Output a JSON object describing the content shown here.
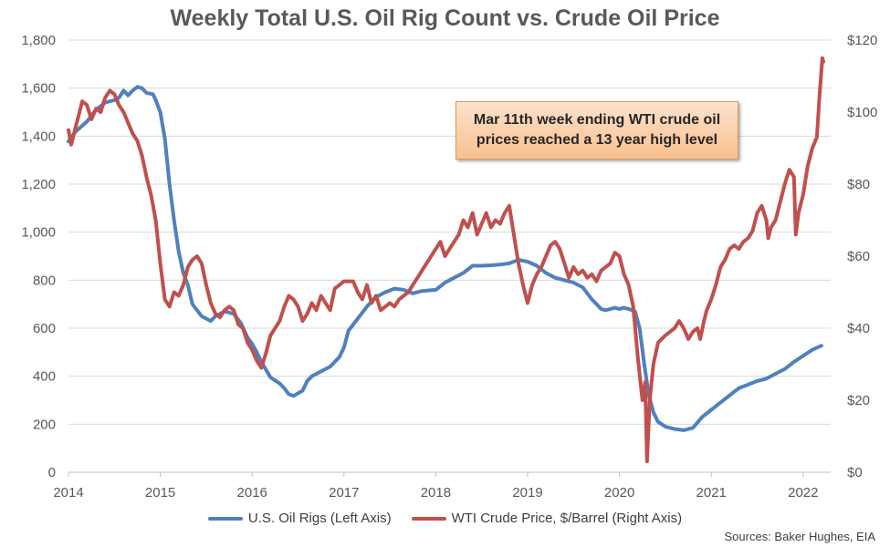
{
  "chart_data": {
    "type": "line",
    "title": "Weekly Total U.S. Oil Rig Count vs. Crude Oil Price",
    "annotation": "Mar 11th week ending WTI crude oil prices reached a 13 year high level",
    "source": "Sources: Baker Hughes, EIA",
    "x_tick_labels": [
      "2014",
      "2015",
      "2016",
      "2017",
      "2018",
      "2019",
      "2020",
      "2021",
      "2022"
    ],
    "xlim": [
      2014.0,
      2022.3
    ],
    "left_axis": {
      "ylim": [
        0,
        1800
      ],
      "tick_labels": [
        "0",
        "200",
        "400",
        "600",
        "800",
        "1,000",
        "1,200",
        "1,400",
        "1,600",
        "1,800"
      ]
    },
    "right_axis": {
      "ylim": [
        0,
        120
      ],
      "tick_labels": [
        "$0",
        "$20",
        "$40",
        "$60",
        "$80",
        "$100",
        "$120"
      ]
    },
    "grid": "horizontal",
    "legend_position": "bottom",
    "colors": {
      "rigs": "#4f81bd",
      "wti": "#c0504d"
    },
    "series": [
      {
        "name": "U.S. Oil Rigs (Left Axis)",
        "axis": "left",
        "points": [
          [
            2014.0,
            1378
          ],
          [
            2014.08,
            1420
          ],
          [
            2014.2,
            1460
          ],
          [
            2014.3,
            1510
          ],
          [
            2014.4,
            1540
          ],
          [
            2014.5,
            1550
          ],
          [
            2014.55,
            1560
          ],
          [
            2014.6,
            1590
          ],
          [
            2014.65,
            1570
          ],
          [
            2014.7,
            1590
          ],
          [
            2014.75,
            1605
          ],
          [
            2014.8,
            1600
          ],
          [
            2014.85,
            1580
          ],
          [
            2014.92,
            1575
          ],
          [
            2014.95,
            1550
          ],
          [
            2015.0,
            1500
          ],
          [
            2015.05,
            1390
          ],
          [
            2015.1,
            1200
          ],
          [
            2015.15,
            1050
          ],
          [
            2015.2,
            920
          ],
          [
            2015.25,
            830
          ],
          [
            2015.3,
            780
          ],
          [
            2015.35,
            700
          ],
          [
            2015.45,
            650
          ],
          [
            2015.55,
            630
          ],
          [
            2015.6,
            650
          ],
          [
            2015.7,
            670
          ],
          [
            2015.8,
            660
          ],
          [
            2015.88,
            620
          ],
          [
            2015.95,
            560
          ],
          [
            2016.0,
            535
          ],
          [
            2016.05,
            500
          ],
          [
            2016.1,
            460
          ],
          [
            2016.2,
            395
          ],
          [
            2016.3,
            370
          ],
          [
            2016.35,
            350
          ],
          [
            2016.4,
            325
          ],
          [
            2016.45,
            318
          ],
          [
            2016.55,
            340
          ],
          [
            2016.6,
            380
          ],
          [
            2016.65,
            400
          ],
          [
            2016.75,
            420
          ],
          [
            2016.85,
            440
          ],
          [
            2016.95,
            480
          ],
          [
            2017.0,
            520
          ],
          [
            2017.05,
            590
          ],
          [
            2017.15,
            640
          ],
          [
            2017.25,
            690
          ],
          [
            2017.35,
            730
          ],
          [
            2017.45,
            750
          ],
          [
            2017.55,
            765
          ],
          [
            2017.65,
            760
          ],
          [
            2017.75,
            745
          ],
          [
            2017.85,
            755
          ],
          [
            2018.0,
            760
          ],
          [
            2018.1,
            790
          ],
          [
            2018.2,
            810
          ],
          [
            2018.3,
            830
          ],
          [
            2018.4,
            860
          ],
          [
            2018.5,
            860
          ],
          [
            2018.6,
            862
          ],
          [
            2018.7,
            865
          ],
          [
            2018.8,
            870
          ],
          [
            2018.9,
            885
          ],
          [
            2019.0,
            877
          ],
          [
            2019.1,
            860
          ],
          [
            2019.2,
            830
          ],
          [
            2019.3,
            810
          ],
          [
            2019.4,
            800
          ],
          [
            2019.5,
            790
          ],
          [
            2019.6,
            770
          ],
          [
            2019.7,
            720
          ],
          [
            2019.8,
            680
          ],
          [
            2019.85,
            675
          ],
          [
            2019.95,
            685
          ],
          [
            2020.0,
            680
          ],
          [
            2020.05,
            685
          ],
          [
            2020.1,
            680
          ],
          [
            2020.17,
            670
          ],
          [
            2020.22,
            600
          ],
          [
            2020.27,
            450
          ],
          [
            2020.32,
            320
          ],
          [
            2020.37,
            250
          ],
          [
            2020.42,
            210
          ],
          [
            2020.5,
            190
          ],
          [
            2020.6,
            180
          ],
          [
            2020.7,
            175
          ],
          [
            2020.8,
            185
          ],
          [
            2020.9,
            230
          ],
          [
            2021.0,
            260
          ],
          [
            2021.1,
            290
          ],
          [
            2021.2,
            320
          ],
          [
            2021.3,
            350
          ],
          [
            2021.4,
            365
          ],
          [
            2021.5,
            380
          ],
          [
            2021.6,
            390
          ],
          [
            2021.7,
            410
          ],
          [
            2021.8,
            430
          ],
          [
            2021.9,
            460
          ],
          [
            2022.0,
            485
          ],
          [
            2022.1,
            510
          ],
          [
            2022.2,
            527
          ]
        ]
      },
      {
        "name": "WTI Crude Price, $/Barrel (Right Axis)",
        "axis": "right",
        "points": [
          [
            2014.0,
            95
          ],
          [
            2014.03,
            91
          ],
          [
            2014.08,
            96
          ],
          [
            2014.12,
            100
          ],
          [
            2014.15,
            103
          ],
          [
            2014.2,
            102
          ],
          [
            2014.25,
            98
          ],
          [
            2014.3,
            101
          ],
          [
            2014.35,
            100
          ],
          [
            2014.4,
            104
          ],
          [
            2014.45,
            106
          ],
          [
            2014.5,
            105
          ],
          [
            2014.55,
            102
          ],
          [
            2014.6,
            100
          ],
          [
            2014.65,
            97
          ],
          [
            2014.7,
            94
          ],
          [
            2014.75,
            92
          ],
          [
            2014.8,
            88
          ],
          [
            2014.85,
            82
          ],
          [
            2014.9,
            77
          ],
          [
            2014.95,
            70
          ],
          [
            2015.0,
            58
          ],
          [
            2015.05,
            48
          ],
          [
            2015.1,
            46
          ],
          [
            2015.15,
            50
          ],
          [
            2015.2,
            49
          ],
          [
            2015.25,
            52
          ],
          [
            2015.3,
            57
          ],
          [
            2015.35,
            59
          ],
          [
            2015.4,
            60
          ],
          [
            2015.45,
            58
          ],
          [
            2015.5,
            52
          ],
          [
            2015.55,
            47
          ],
          [
            2015.6,
            44
          ],
          [
            2015.65,
            43
          ],
          [
            2015.7,
            45
          ],
          [
            2015.75,
            46
          ],
          [
            2015.8,
            45
          ],
          [
            2015.85,
            41
          ],
          [
            2015.9,
            40
          ],
          [
            2015.95,
            36
          ],
          [
            2016.0,
            34
          ],
          [
            2016.05,
            31
          ],
          [
            2016.1,
            29
          ],
          [
            2016.15,
            33
          ],
          [
            2016.2,
            38
          ],
          [
            2016.3,
            42
          ],
          [
            2016.35,
            46
          ],
          [
            2016.4,
            49
          ],
          [
            2016.45,
            48
          ],
          [
            2016.5,
            46
          ],
          [
            2016.55,
            42
          ],
          [
            2016.6,
            44
          ],
          [
            2016.65,
            47
          ],
          [
            2016.7,
            45
          ],
          [
            2016.75,
            49
          ],
          [
            2016.8,
            47
          ],
          [
            2016.85,
            45
          ],
          [
            2016.9,
            51
          ],
          [
            2016.95,
            52
          ],
          [
            2017.0,
            53
          ],
          [
            2017.1,
            53
          ],
          [
            2017.15,
            50
          ],
          [
            2017.2,
            48
          ],
          [
            2017.25,
            52
          ],
          [
            2017.3,
            47
          ],
          [
            2017.35,
            49
          ],
          [
            2017.4,
            45
          ],
          [
            2017.45,
            46
          ],
          [
            2017.5,
            47
          ],
          [
            2017.55,
            46
          ],
          [
            2017.6,
            48
          ],
          [
            2017.7,
            50
          ],
          [
            2017.75,
            52
          ],
          [
            2017.8,
            54
          ],
          [
            2017.85,
            56
          ],
          [
            2017.9,
            58
          ],
          [
            2018.0,
            62
          ],
          [
            2018.05,
            64
          ],
          [
            2018.1,
            60
          ],
          [
            2018.15,
            62
          ],
          [
            2018.2,
            64
          ],
          [
            2018.25,
            66
          ],
          [
            2018.3,
            70
          ],
          [
            2018.35,
            68
          ],
          [
            2018.4,
            72
          ],
          [
            2018.45,
            66
          ],
          [
            2018.5,
            69
          ],
          [
            2018.55,
            72
          ],
          [
            2018.6,
            68
          ],
          [
            2018.65,
            70
          ],
          [
            2018.7,
            69
          ],
          [
            2018.75,
            72
          ],
          [
            2018.8,
            74
          ],
          [
            2018.85,
            66
          ],
          [
            2018.9,
            58
          ],
          [
            2018.95,
            52
          ],
          [
            2019.0,
            47
          ],
          [
            2019.05,
            52
          ],
          [
            2019.1,
            55
          ],
          [
            2019.15,
            57
          ],
          [
            2019.2,
            60
          ],
          [
            2019.25,
            63
          ],
          [
            2019.3,
            64
          ],
          [
            2019.35,
            62
          ],
          [
            2019.4,
            58
          ],
          [
            2019.45,
            54
          ],
          [
            2019.5,
            57
          ],
          [
            2019.55,
            55
          ],
          [
            2019.6,
            56
          ],
          [
            2019.65,
            54
          ],
          [
            2019.7,
            55
          ],
          [
            2019.75,
            53
          ],
          [
            2019.8,
            56
          ],
          [
            2019.85,
            57
          ],
          [
            2019.9,
            58
          ],
          [
            2019.95,
            61
          ],
          [
            2020.0,
            60
          ],
          [
            2020.05,
            55
          ],
          [
            2020.1,
            52
          ],
          [
            2020.15,
            46
          ],
          [
            2020.2,
            32
          ],
          [
            2020.25,
            20
          ],
          [
            2020.28,
            25
          ],
          [
            2020.3,
            3
          ],
          [
            2020.33,
            20
          ],
          [
            2020.37,
            30
          ],
          [
            2020.42,
            36
          ],
          [
            2020.5,
            38
          ],
          [
            2020.6,
            40
          ],
          [
            2020.65,
            42
          ],
          [
            2020.7,
            40
          ],
          [
            2020.75,
            37
          ],
          [
            2020.8,
            39
          ],
          [
            2020.85,
            40
          ],
          [
            2020.88,
            37
          ],
          [
            2020.92,
            42
          ],
          [
            2020.95,
            45
          ],
          [
            2021.0,
            48
          ],
          [
            2021.05,
            52
          ],
          [
            2021.1,
            57
          ],
          [
            2021.15,
            59
          ],
          [
            2021.2,
            62
          ],
          [
            2021.25,
            63
          ],
          [
            2021.3,
            62
          ],
          [
            2021.35,
            64
          ],
          [
            2021.4,
            65
          ],
          [
            2021.45,
            67
          ],
          [
            2021.5,
            72
          ],
          [
            2021.55,
            74
          ],
          [
            2021.6,
            70
          ],
          [
            2021.62,
            65
          ],
          [
            2021.65,
            68
          ],
          [
            2021.7,
            70
          ],
          [
            2021.75,
            75
          ],
          [
            2021.8,
            80
          ],
          [
            2021.85,
            84
          ],
          [
            2021.9,
            82
          ],
          [
            2021.92,
            66
          ],
          [
            2021.95,
            72
          ],
          [
            2022.0,
            77
          ],
          [
            2022.05,
            85
          ],
          [
            2022.1,
            90
          ],
          [
            2022.15,
            93
          ],
          [
            2022.18,
            105
          ],
          [
            2022.21,
            115
          ],
          [
            2022.22,
            114
          ]
        ]
      }
    ]
  }
}
